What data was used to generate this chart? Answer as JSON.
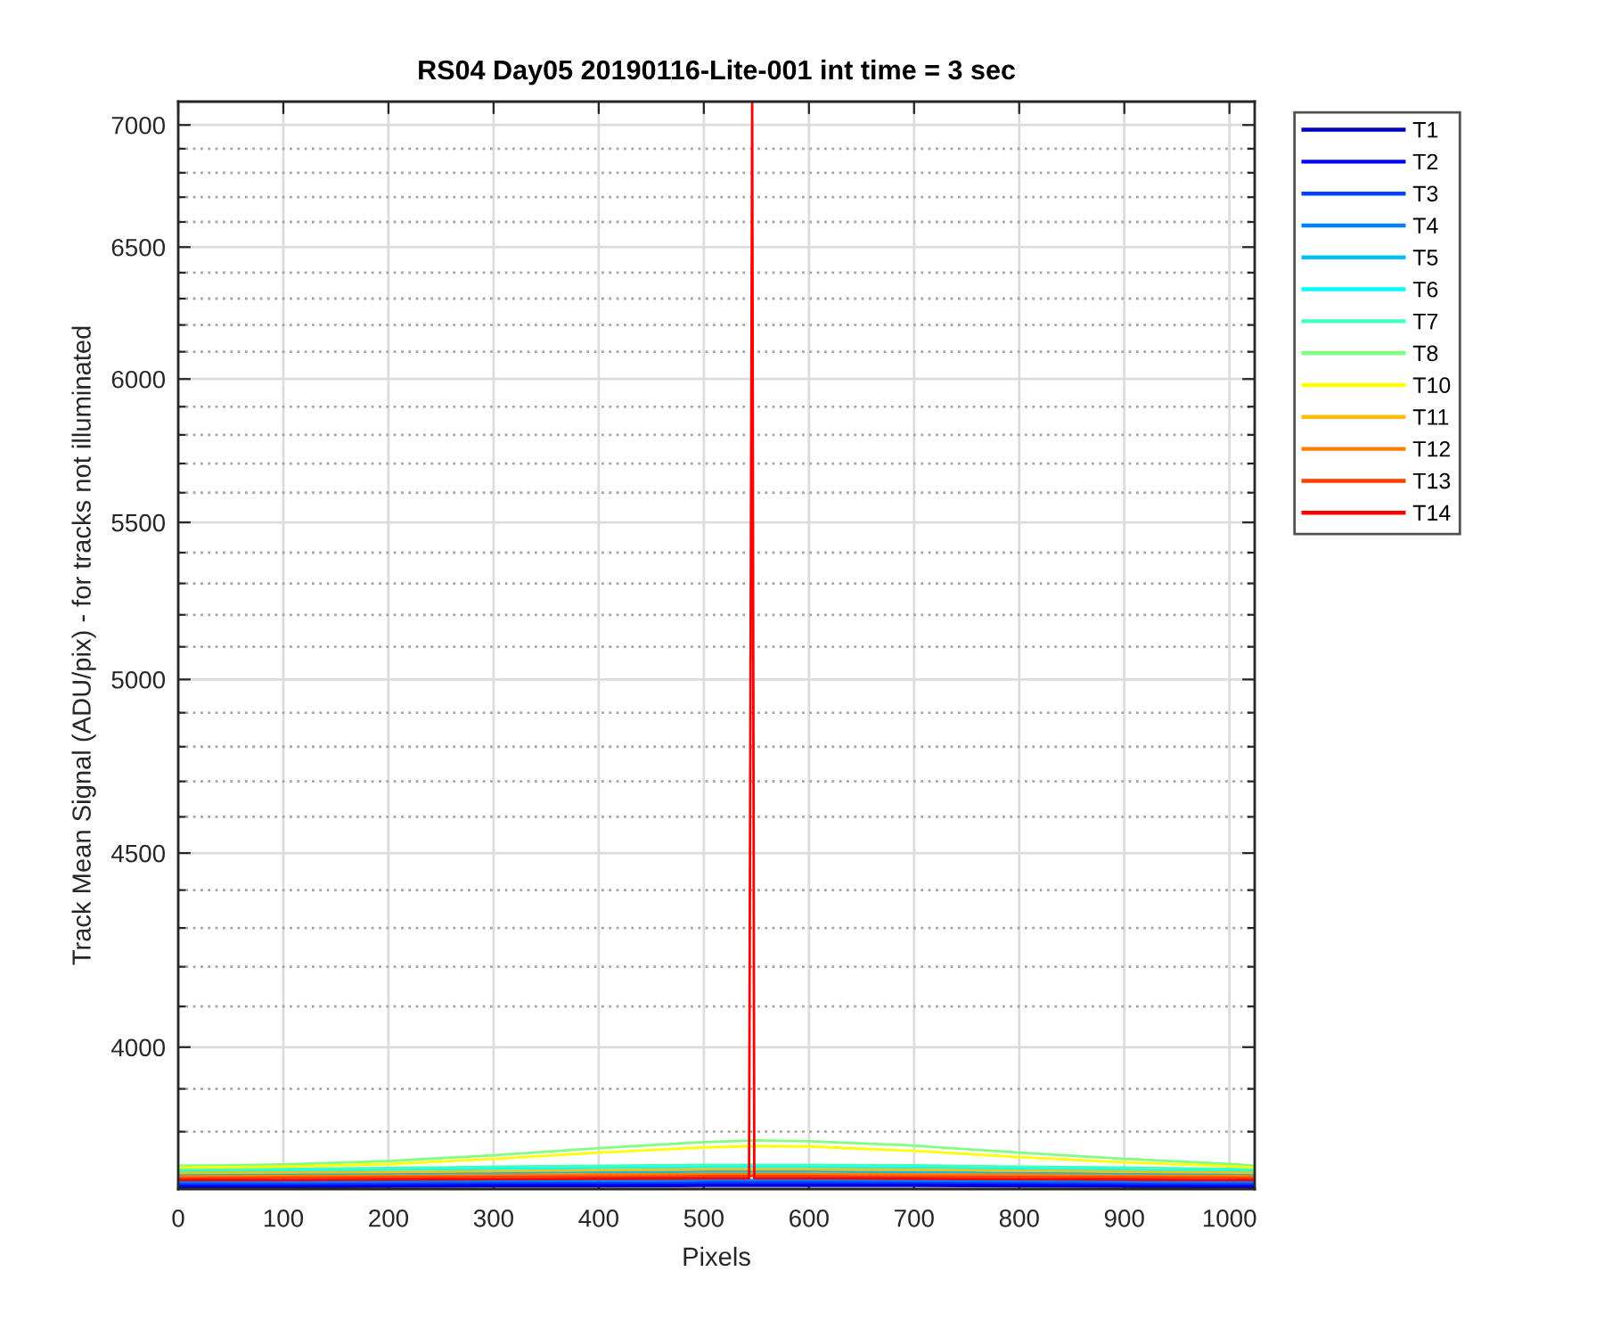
{
  "chart_data": {
    "type": "line",
    "title": "RS04 Day05 20190116-Lite-001 int time = 3 sec",
    "xlabel": "Pixels",
    "ylabel": "Track Mean Signal (ADU/pix) - for tracks not illuminated",
    "x": [
      0,
      100,
      200,
      300,
      400,
      500,
      550,
      600,
      700,
      800,
      900,
      1000,
      1024
    ],
    "series": [
      {
        "name": "T1",
        "color": "#0000bf",
        "values": [
          3674,
          3674,
          3675,
          3676,
          3676,
          3677,
          3677,
          3677,
          3677,
          3676,
          3675,
          3674,
          3674
        ]
      },
      {
        "name": "T2",
        "color": "#0000ff",
        "values": [
          3678,
          3678,
          3679,
          3680,
          3680,
          3681,
          3681,
          3681,
          3681,
          3680,
          3679,
          3678,
          3678
        ]
      },
      {
        "name": "T3",
        "color": "#0040ff",
        "values": [
          3682,
          3682,
          3683,
          3684,
          3684,
          3685,
          3685,
          3685,
          3685,
          3684,
          3683,
          3682,
          3682
        ]
      },
      {
        "name": "T4",
        "color": "#0080ff",
        "values": [
          3686,
          3686,
          3687,
          3688,
          3689,
          3690,
          3690,
          3690,
          3689,
          3688,
          3687,
          3686,
          3686
        ]
      },
      {
        "name": "T5",
        "color": "#00bfff",
        "values": [
          3702,
          3703,
          3704,
          3706,
          3708,
          3709,
          3709,
          3709,
          3708,
          3706,
          3704,
          3703,
          3702
        ]
      },
      {
        "name": "T6",
        "color": "#00ffff",
        "values": [
          3710,
          3711,
          3713,
          3715,
          3717,
          3719,
          3719,
          3719,
          3718,
          3715,
          3713,
          3711,
          3710
        ]
      },
      {
        "name": "T7",
        "color": "#40ffbf",
        "values": [
          3714,
          3715,
          3717,
          3720,
          3722,
          3724,
          3724,
          3724,
          3723,
          3720,
          3718,
          3715,
          3714
        ]
      },
      {
        "name": "T8",
        "color": "#80ff80",
        "values": [
          3722,
          3725,
          3733,
          3746,
          3762,
          3776,
          3780,
          3778,
          3768,
          3752,
          3738,
          3726,
          3722
        ]
      },
      {
        "name": "T10",
        "color": "#ffff00",
        "values": [
          3718,
          3720,
          3726,
          3738,
          3752,
          3764,
          3767,
          3766,
          3756,
          3742,
          3730,
          3721,
          3718
        ]
      },
      {
        "name": "T11",
        "color": "#ffbf00",
        "values": [
          3706,
          3707,
          3708,
          3710,
          3712,
          3714,
          3714,
          3714,
          3713,
          3711,
          3709,
          3707,
          3706
        ]
      },
      {
        "name": "T12",
        "color": "#ff8000",
        "values": [
          3698,
          3699,
          3700,
          3701,
          3703,
          3704,
          3704,
          3704,
          3703,
          3702,
          3700,
          3699,
          3698
        ]
      },
      {
        "name": "T13",
        "color": "#ff4000",
        "values": [
          3694,
          3695,
          3696,
          3697,
          3698,
          3699,
          3699,
          3699,
          3698,
          3697,
          3696,
          3695,
          3694
        ]
      },
      {
        "name": "T14",
        "color": "#ff0000",
        "x": [
          0,
          100,
          200,
          300,
          400,
          500,
          543,
          546,
          548,
          600,
          700,
          800,
          900,
          1000,
          1024
        ],
        "values": [
          3690,
          3690,
          3691,
          3692,
          3693,
          3694,
          3694,
          7100,
          3694,
          3694,
          3693,
          3692,
          3691,
          3690,
          3690
        ]
      }
    ],
    "xlim": [
      0,
      1024
    ],
    "xticks": [
      0,
      100,
      200,
      300,
      400,
      500,
      600,
      700,
      800,
      900,
      1000
    ],
    "ylim": [
      3670,
      7100
    ],
    "yticks": [
      {
        "value": 3700,
        "label": null
      },
      {
        "value": 3800,
        "label": null
      },
      {
        "value": 3900,
        "label": null
      },
      4000,
      {
        "value": 4100,
        "label": null
      },
      {
        "value": 4200,
        "label": null
      },
      {
        "value": 4300,
        "label": null
      },
      {
        "value": 4400,
        "label": null
      },
      4500,
      {
        "value": 4600,
        "label": null
      },
      {
        "value": 4700,
        "label": null
      },
      {
        "value": 4800,
        "label": null
      },
      {
        "value": 4900,
        "label": null
      },
      5000,
      {
        "value": 5100,
        "label": null
      },
      {
        "value": 5200,
        "label": null
      },
      {
        "value": 5300,
        "label": null
      },
      {
        "value": 5400,
        "label": null
      },
      5500,
      {
        "value": 5600,
        "label": null
      },
      {
        "value": 5700,
        "label": null
      },
      {
        "value": 5800,
        "label": null
      },
      {
        "value": 5900,
        "label": null
      },
      6000,
      {
        "value": 6100,
        "label": null
      },
      {
        "value": 6200,
        "label": null
      },
      {
        "value": 6300,
        "label": null
      },
      {
        "value": 6400,
        "label": null
      },
      6500,
      {
        "value": 6600,
        "label": null
      },
      {
        "value": 6700,
        "label": null
      },
      {
        "value": 6800,
        "label": null
      },
      {
        "value": 6900,
        "label": null
      },
      7000
    ],
    "log": "y",
    "grid": true,
    "legend": "top right",
    "marker": "none",
    "line_style": "solid"
  }
}
